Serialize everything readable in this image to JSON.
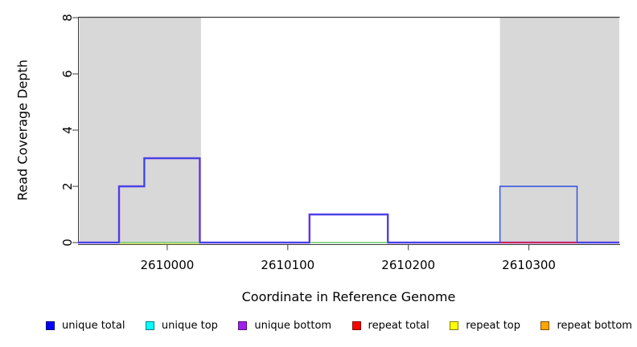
{
  "chart_data": {
    "type": "line",
    "subtype": "step-coverage",
    "title": "",
    "xlabel": "Coordinate in Reference Genome",
    "ylabel": "Read Coverage Depth",
    "xlim": [
      2609926,
      2610375
    ],
    "ylim": [
      0,
      8
    ],
    "grid": false,
    "x_ticks": [
      {
        "value": 2610000,
        "label": "2610000"
      },
      {
        "value": 2610100,
        "label": "2610100"
      },
      {
        "value": 2610200,
        "label": "2610200"
      },
      {
        "value": 2610300,
        "label": "2610300"
      }
    ],
    "y_ticks": [
      {
        "value": 0,
        "label": "0"
      },
      {
        "value": 2,
        "label": "2"
      },
      {
        "value": 4,
        "label": "4"
      },
      {
        "value": 6,
        "label": "6"
      },
      {
        "value": 8,
        "label": "8"
      }
    ],
    "shaded_regions": {
      "color": "#d8d8d8",
      "regions": [
        {
          "from": 2609927,
          "to": 2610028
        },
        {
          "from": 2610276,
          "to": 2610375
        }
      ]
    },
    "series": [
      {
        "name": "unique total",
        "color": "#0000ff",
        "line_color": "#2e4be0",
        "line_width": 1.4,
        "draw": true,
        "draw_order": 2,
        "steps": [
          [
            2609926,
            2609960,
            0
          ],
          [
            2609960,
            2609981,
            2
          ],
          [
            2609981,
            2610027,
            3
          ],
          [
            2610027,
            2610118,
            0
          ],
          [
            2610118,
            2610183,
            1
          ],
          [
            2610183,
            2610276,
            0
          ],
          [
            2610276,
            2610340,
            2
          ],
          [
            2610340,
            2610375,
            0
          ]
        ]
      },
      {
        "name": "unique top",
        "color": "#00ffff",
        "draw": false,
        "draw_order": 0,
        "steps": [
          [
            2609926,
            2610375,
            0
          ]
        ]
      },
      {
        "name": "unique bottom",
        "color": "#a020f0",
        "line_color": "#8530ee",
        "line_width": 2.4,
        "draw": true,
        "draw_order": 1,
        "steps": [
          [
            2609926,
            2609960,
            0
          ],
          [
            2609960,
            2609981,
            2
          ],
          [
            2609981,
            2610027,
            3
          ],
          [
            2610027,
            2610118,
            0
          ],
          [
            2610118,
            2610183,
            1
          ],
          [
            2610183,
            2610375,
            0
          ]
        ]
      },
      {
        "name": "repeat total",
        "color": "#ff0000",
        "draw": false,
        "draw_order": 0,
        "steps": [
          [
            2609926,
            2610375,
            0
          ]
        ]
      },
      {
        "name": "repeat top",
        "color": "#ffff00",
        "draw": false,
        "draw_order": 0,
        "steps": [
          [
            2609926,
            2610375,
            0
          ]
        ]
      },
      {
        "name": "repeat bottom",
        "color": "#ffa500",
        "draw": false,
        "draw_order": 0,
        "steps": [
          [
            2609926,
            2610375,
            0
          ]
        ]
      }
    ],
    "baseline_overlays": [
      {
        "name": "zero-line-blend-green-left",
        "from": 2609960,
        "to": 2610027,
        "color": "#6cc86c",
        "width": 1.6,
        "dy": 0
      },
      {
        "name": "zero-line-yellow-left",
        "from": 2609960,
        "to": 2610027,
        "color": "#e2da52",
        "width": 1.0,
        "dy": 1.6
      },
      {
        "name": "zero-line-blend-green-mid",
        "from": 2610118,
        "to": 2610183,
        "color": "#6cc86c",
        "width": 1.6,
        "dy": 0
      },
      {
        "name": "zero-line-red-right",
        "from": 2610276,
        "to": 2610340,
        "color": "#e02424",
        "width": 1.6,
        "dy": 0
      }
    ]
  },
  "legend": {
    "items": [
      {
        "label": "unique total",
        "color": "#0000ff"
      },
      {
        "label": "unique top",
        "color": "#00ffff"
      },
      {
        "label": "unique bottom",
        "color": "#a020f0"
      },
      {
        "label": "repeat total",
        "color": "#ff0000"
      },
      {
        "label": "repeat top",
        "color": "#ffff00"
      },
      {
        "label": "repeat bottom",
        "color": "#ffa500"
      }
    ]
  },
  "colors": {
    "frame": "#3c3c3c",
    "background": "#ffffff",
    "repeat_shading": "#d8d8d8",
    "text": "#000000"
  }
}
